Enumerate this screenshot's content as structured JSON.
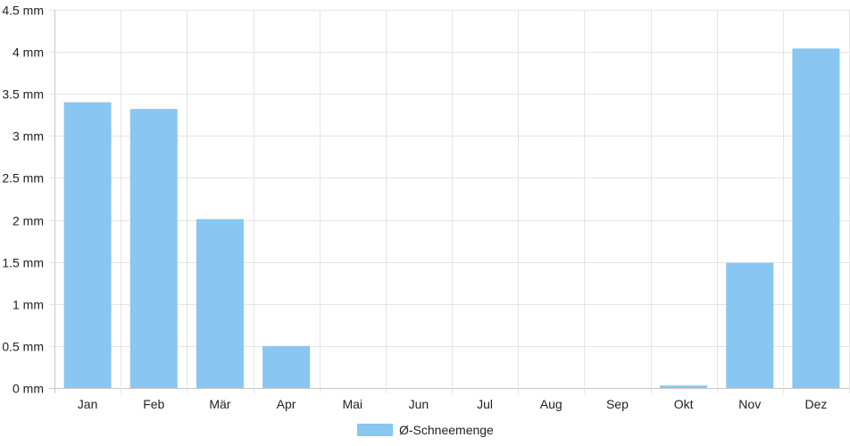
{
  "chart_data": {
    "type": "bar",
    "categories": [
      "Jan",
      "Feb",
      "Mär",
      "Apr",
      "Mai",
      "Jun",
      "Jul",
      "Aug",
      "Sep",
      "Okt",
      "Nov",
      "Dez"
    ],
    "series": [
      {
        "name": "Ø-Schneemenge",
        "color": "#89c6f1",
        "values": [
          3.4,
          3.32,
          2.01,
          0.5,
          0,
          0,
          0,
          0,
          0,
          0.03,
          1.49,
          4.04
        ]
      }
    ],
    "y_ticks": [
      "0 mm",
      "0.5 mm",
      "1 mm",
      "1.5 mm",
      "2 mm",
      "2.5 mm",
      "3 mm",
      "3.5 mm",
      "4 mm",
      "4.5 mm"
    ],
    "ylim": [
      0,
      4.5
    ],
    "y_unit": "mm",
    "grid": true,
    "legend_position": "bottom-center"
  }
}
